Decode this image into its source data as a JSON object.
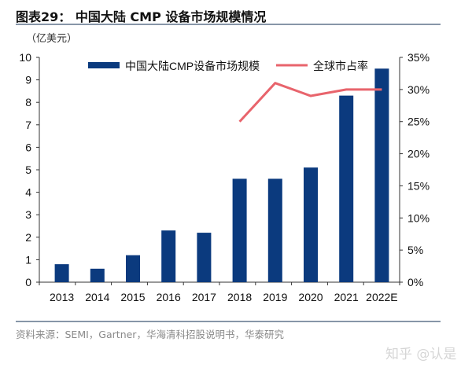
{
  "title": "图表29： 中国大陆 CMP 设备市场规模情况",
  "unit_label": "（亿美元）",
  "source": "资料来源：SEMI，Gartner，华海清科招股说明书，华泰研究",
  "watermark": "知乎 @认是",
  "chart_data": {
    "type": "bar+line",
    "categories": [
      "2013",
      "2014",
      "2015",
      "2016",
      "2017",
      "2018",
      "2019",
      "2020",
      "2021",
      "2022E"
    ],
    "series": [
      {
        "name": "中国大陆CMP设备市场规模",
        "type": "bar",
        "axis": "left",
        "color": "#0b3a7e",
        "values": [
          0.8,
          0.6,
          1.2,
          2.3,
          2.2,
          4.6,
          4.6,
          5.1,
          8.3,
          9.5
        ]
      },
      {
        "name": "全球市占率",
        "type": "line",
        "axis": "right",
        "color": "#e8646c",
        "values": [
          null,
          null,
          null,
          null,
          null,
          25,
          31,
          29,
          30,
          30
        ]
      }
    ],
    "left_axis": {
      "ylim": [
        0,
        10
      ],
      "ticks": [
        "0",
        "1",
        "2",
        "3",
        "4",
        "5",
        "6",
        "7",
        "8",
        "9",
        "10"
      ]
    },
    "right_axis": {
      "ylim": [
        0,
        35
      ],
      "ticks": [
        "0%",
        "5%",
        "10%",
        "15%",
        "20%",
        "25%",
        "30%",
        "35%"
      ]
    },
    "legend_position": "top",
    "grid": false
  }
}
